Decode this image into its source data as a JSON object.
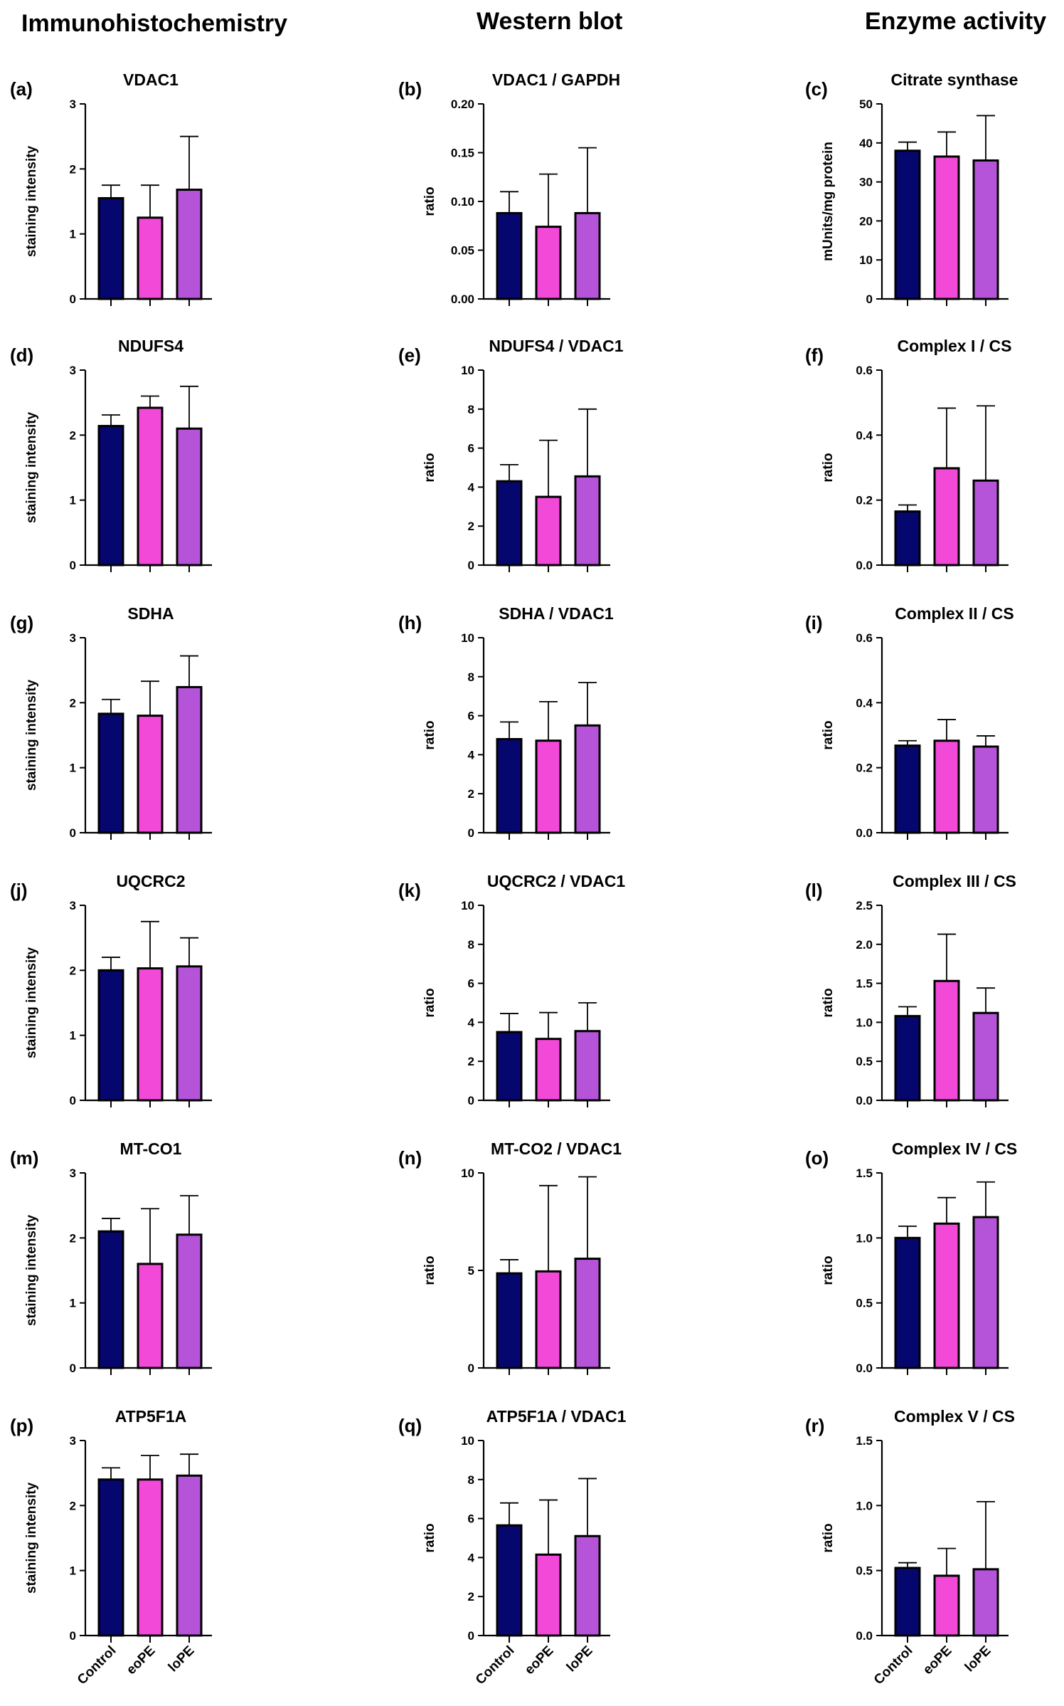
{
  "columns": [
    "Immunohistochemistry",
    "Western blot",
    "Enzyme activity"
  ],
  "colors": {
    "Control": "#06066f",
    "eoPE": "#f249d8",
    "loPE": "#b654d9"
  },
  "chart_data": [
    {
      "label": "(a)",
      "title": "VDAC1",
      "type": "bar",
      "ylabel": "staining intensity",
      "ylim": [
        0,
        3
      ],
      "yticks": [
        "0",
        "1",
        "2",
        "3"
      ],
      "categories": [
        "Control",
        "eoPE",
        "loPE"
      ],
      "values": [
        1.55,
        1.25,
        1.68
      ],
      "errors": [
        0.2,
        0.5,
        0.82
      ]
    },
    {
      "label": "(b)",
      "title": "VDAC1  /  GAPDH",
      "type": "bar",
      "ylabel": "ratio",
      "ylim": [
        0,
        0.2
      ],
      "yticks": [
        "0.00",
        "0.05",
        "0.10",
        "0.15",
        "0.20"
      ],
      "categories": [
        "Control",
        "eoPE",
        "loPE"
      ],
      "values": [
        0.088,
        0.074,
        0.088
      ],
      "errors": [
        0.022,
        0.054,
        0.067
      ]
    },
    {
      "label": "(c)",
      "title": "Citrate synthase",
      "type": "bar",
      "ylabel": "mUnits/mg protein",
      "ylim": [
        0,
        50
      ],
      "yticks": [
        "0",
        "10",
        "20",
        "30",
        "40",
        "50"
      ],
      "categories": [
        "Control",
        "eoPE",
        "loPE"
      ],
      "values": [
        38,
        36.5,
        35.5
      ],
      "errors": [
        2.2,
        6.3,
        11.5
      ]
    },
    {
      "label": "(d)",
      "title": "NDUFS4",
      "type": "bar",
      "ylabel": "staining intensity",
      "ylim": [
        0,
        3
      ],
      "yticks": [
        "0",
        "1",
        "2",
        "3"
      ],
      "categories": [
        "Control",
        "eoPE",
        "loPE"
      ],
      "values": [
        2.14,
        2.42,
        2.1
      ],
      "errors": [
        0.17,
        0.18,
        0.65
      ]
    },
    {
      "label": "(e)",
      "title": "NDUFS4 / VDAC1",
      "type": "bar",
      "ylabel": "ratio",
      "ylim": [
        0,
        10
      ],
      "yticks": [
        "0",
        "2",
        "4",
        "6",
        "8",
        "10"
      ],
      "categories": [
        "Control",
        "eoPE",
        "loPE"
      ],
      "values": [
        4.3,
        3.5,
        4.55
      ],
      "errors": [
        0.85,
        2.9,
        3.45
      ]
    },
    {
      "label": "(f)",
      "title": "Complex I / CS",
      "type": "bar",
      "ylabel": "ratio",
      "ylim": [
        0,
        0.6
      ],
      "yticks": [
        "0.0",
        "0.2",
        "0.4",
        "0.6"
      ],
      "categories": [
        "Control",
        "eoPE",
        "loPE"
      ],
      "values": [
        0.165,
        0.298,
        0.26
      ],
      "errors": [
        0.02,
        0.185,
        0.23
      ]
    },
    {
      "label": "(g)",
      "title": "SDHA",
      "type": "bar",
      "ylabel": "staining intensity",
      "ylim": [
        0,
        3
      ],
      "yticks": [
        "0",
        "1",
        "2",
        "3"
      ],
      "categories": [
        "Control",
        "eoPE",
        "loPE"
      ],
      "values": [
        1.83,
        1.8,
        2.24
      ],
      "errors": [
        0.22,
        0.53,
        0.48
      ]
    },
    {
      "label": "(h)",
      "title": "SDHA / VDAC1",
      "type": "bar",
      "ylabel": "ratio",
      "ylim": [
        0,
        10
      ],
      "yticks": [
        "0",
        "2",
        "4",
        "6",
        "8",
        "10"
      ],
      "categories": [
        "Control",
        "eoPE",
        "loPE"
      ],
      "values": [
        4.8,
        4.72,
        5.5
      ],
      "errors": [
        0.88,
        2.0,
        2.2
      ]
    },
    {
      "label": "(i)",
      "title": "Complex II / CS",
      "type": "bar",
      "ylabel": "ratio",
      "ylim": [
        0,
        0.6
      ],
      "yticks": [
        "0.0",
        "0.2",
        "0.4",
        "0.6"
      ],
      "categories": [
        "Control",
        "eoPE",
        "loPE"
      ],
      "values": [
        0.268,
        0.283,
        0.265
      ],
      "errors": [
        0.015,
        0.065,
        0.033
      ]
    },
    {
      "label": "(j)",
      "title": "UQCRC2",
      "type": "bar",
      "ylabel": "staining intensity",
      "ylim": [
        0,
        3
      ],
      "yticks": [
        "0",
        "1",
        "2",
        "3"
      ],
      "categories": [
        "Control",
        "eoPE",
        "loPE"
      ],
      "values": [
        2.0,
        2.03,
        2.06
      ],
      "errors": [
        0.2,
        0.72,
        0.44
      ]
    },
    {
      "label": "(k)",
      "title": "UQCRC2 / VDAC1",
      "type": "bar",
      "ylabel": "ratio",
      "ylim": [
        0,
        10
      ],
      "yticks": [
        "0",
        "2",
        "4",
        "6",
        "8",
        "10"
      ],
      "categories": [
        "Control",
        "eoPE",
        "loPE"
      ],
      "values": [
        3.5,
        3.15,
        3.55
      ],
      "errors": [
        0.95,
        1.35,
        1.45
      ]
    },
    {
      "label": "(l)",
      "title": "Complex III / CS",
      "type": "bar",
      "ylabel": "ratio",
      "ylim": [
        0,
        2.5
      ],
      "yticks": [
        "0.0",
        "0.5",
        "1.0",
        "1.5",
        "2.0",
        "2.5"
      ],
      "categories": [
        "Control",
        "eoPE",
        "loPE"
      ],
      "values": [
        1.08,
        1.53,
        1.12
      ],
      "errors": [
        0.12,
        0.6,
        0.32
      ]
    },
    {
      "label": "(m)",
      "title": "MT-CO1",
      "type": "bar",
      "ylabel": "staining intensity",
      "ylim": [
        0,
        3
      ],
      "yticks": [
        "0",
        "1",
        "2",
        "3"
      ],
      "categories": [
        "Control",
        "eoPE",
        "loPE"
      ],
      "values": [
        2.1,
        1.6,
        2.05
      ],
      "errors": [
        0.2,
        0.85,
        0.6
      ]
    },
    {
      "label": "(n)",
      "title": "MT-CO2 / VDAC1",
      "type": "bar",
      "ylabel": "ratio",
      "ylim": [
        0,
        10
      ],
      "yticks": [
        "0",
        "5",
        "10"
      ],
      "categories": [
        "Control",
        "eoPE",
        "loPE"
      ],
      "values": [
        4.85,
        4.95,
        5.6
      ],
      "errors": [
        0.7,
        4.4,
        4.2
      ]
    },
    {
      "label": "(o)",
      "title": "Complex IV / CS",
      "type": "bar",
      "ylabel": "ratio",
      "ylim": [
        0,
        1.5
      ],
      "yticks": [
        "0.0",
        "0.5",
        "1.0",
        "1.5"
      ],
      "categories": [
        "Control",
        "eoPE",
        "loPE"
      ],
      "values": [
        1.0,
        1.11,
        1.16
      ],
      "errors": [
        0.09,
        0.2,
        0.27
      ]
    },
    {
      "label": "(p)",
      "title": "ATP5F1A",
      "type": "bar",
      "ylabel": "staining intensity",
      "ylim": [
        0,
        3
      ],
      "yticks": [
        "0",
        "1",
        "2",
        "3"
      ],
      "categories": [
        "Control",
        "eoPE",
        "loPE"
      ],
      "values": [
        2.4,
        2.4,
        2.46
      ],
      "errors": [
        0.18,
        0.37,
        0.33
      ]
    },
    {
      "label": "(q)",
      "title": "ATP5F1A / VDAC1",
      "type": "bar",
      "ylabel": "ratio",
      "ylim": [
        0,
        10
      ],
      "yticks": [
        "0",
        "2",
        "4",
        "6",
        "8",
        "10"
      ],
      "categories": [
        "Control",
        "eoPE",
        "loPE"
      ],
      "values": [
        5.65,
        4.15,
        5.1
      ],
      "errors": [
        1.15,
        2.8,
        2.95
      ]
    },
    {
      "label": "(r)",
      "title": "Complex V / CS",
      "type": "bar",
      "ylabel": "ratio",
      "ylim": [
        0,
        1.5
      ],
      "yticks": [
        "0.0",
        "0.5",
        "1.0",
        "1.5"
      ],
      "categories": [
        "Control",
        "eoPE",
        "loPE"
      ],
      "values": [
        0.52,
        0.46,
        0.51
      ],
      "errors": [
        0.04,
        0.21,
        0.52
      ]
    }
  ]
}
